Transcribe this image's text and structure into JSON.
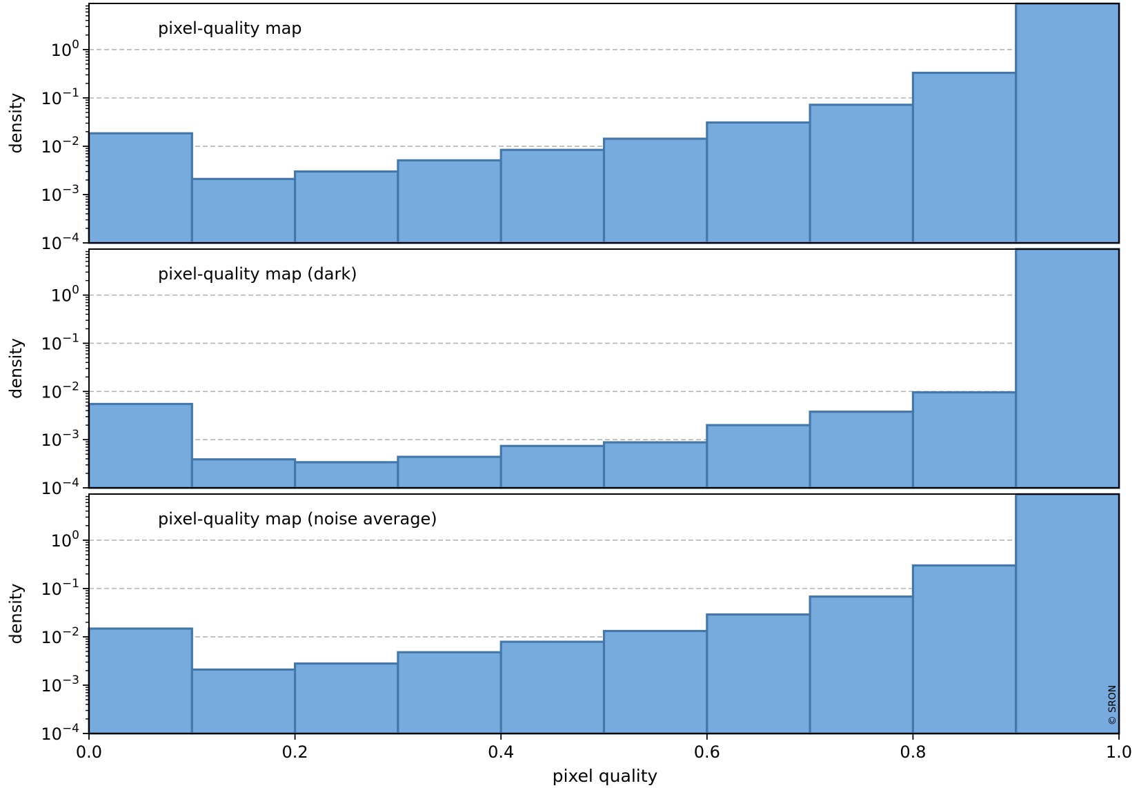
{
  "chart_data": [
    {
      "type": "bar",
      "title": "pixel-quality map",
      "bin_edges": [
        0.0,
        0.1,
        0.2,
        0.3,
        0.4,
        0.5,
        0.6,
        0.7,
        0.8,
        0.9,
        1.0
      ],
      "values": [
        0.0185,
        0.0021,
        0.003,
        0.0051,
        0.0084,
        0.0143,
        0.031,
        0.072,
        0.33,
        8.9
      ],
      "ylabel": "density",
      "yscale": "log",
      "ylim": [
        0.0001,
        9.0
      ],
      "grid": "y-major-dashed"
    },
    {
      "type": "bar",
      "title": "pixel-quality map (dark)",
      "bin_edges": [
        0.0,
        0.1,
        0.2,
        0.3,
        0.4,
        0.5,
        0.6,
        0.7,
        0.8,
        0.9,
        1.0
      ],
      "values": [
        0.0055,
        0.00039,
        0.00034,
        0.00044,
        0.00074,
        0.00088,
        0.002,
        0.0038,
        0.0096,
        9.0
      ],
      "ylabel": "density",
      "yscale": "log",
      "ylim": [
        0.0001,
        9.0
      ],
      "grid": "y-major-dashed"
    },
    {
      "type": "bar",
      "title": "pixel-quality map (noise average)",
      "bin_edges": [
        0.0,
        0.1,
        0.2,
        0.3,
        0.4,
        0.5,
        0.6,
        0.7,
        0.8,
        0.9,
        1.0
      ],
      "values": [
        0.0148,
        0.0021,
        0.0028,
        0.0048,
        0.0079,
        0.0132,
        0.029,
        0.068,
        0.3,
        8.9
      ],
      "ylabel": "density",
      "yscale": "log",
      "ylim": [
        0.0001,
        9.0
      ],
      "grid": "y-major-dashed"
    }
  ],
  "shared": {
    "xlabel": "pixel quality",
    "xlim": [
      0.0,
      1.0
    ],
    "xticks": [
      "0.0",
      "0.2",
      "0.4",
      "0.6",
      "0.8",
      "1.0"
    ],
    "yticks_exponents": [
      "-4",
      "-3",
      "-2",
      "-1",
      "0"
    ],
    "ytick_base": "10"
  },
  "watermark": "© SRON",
  "colors": {
    "bar_fill": "#77aadd",
    "bar_edge": "#4477aa",
    "grid": "#b4b4b4"
  }
}
